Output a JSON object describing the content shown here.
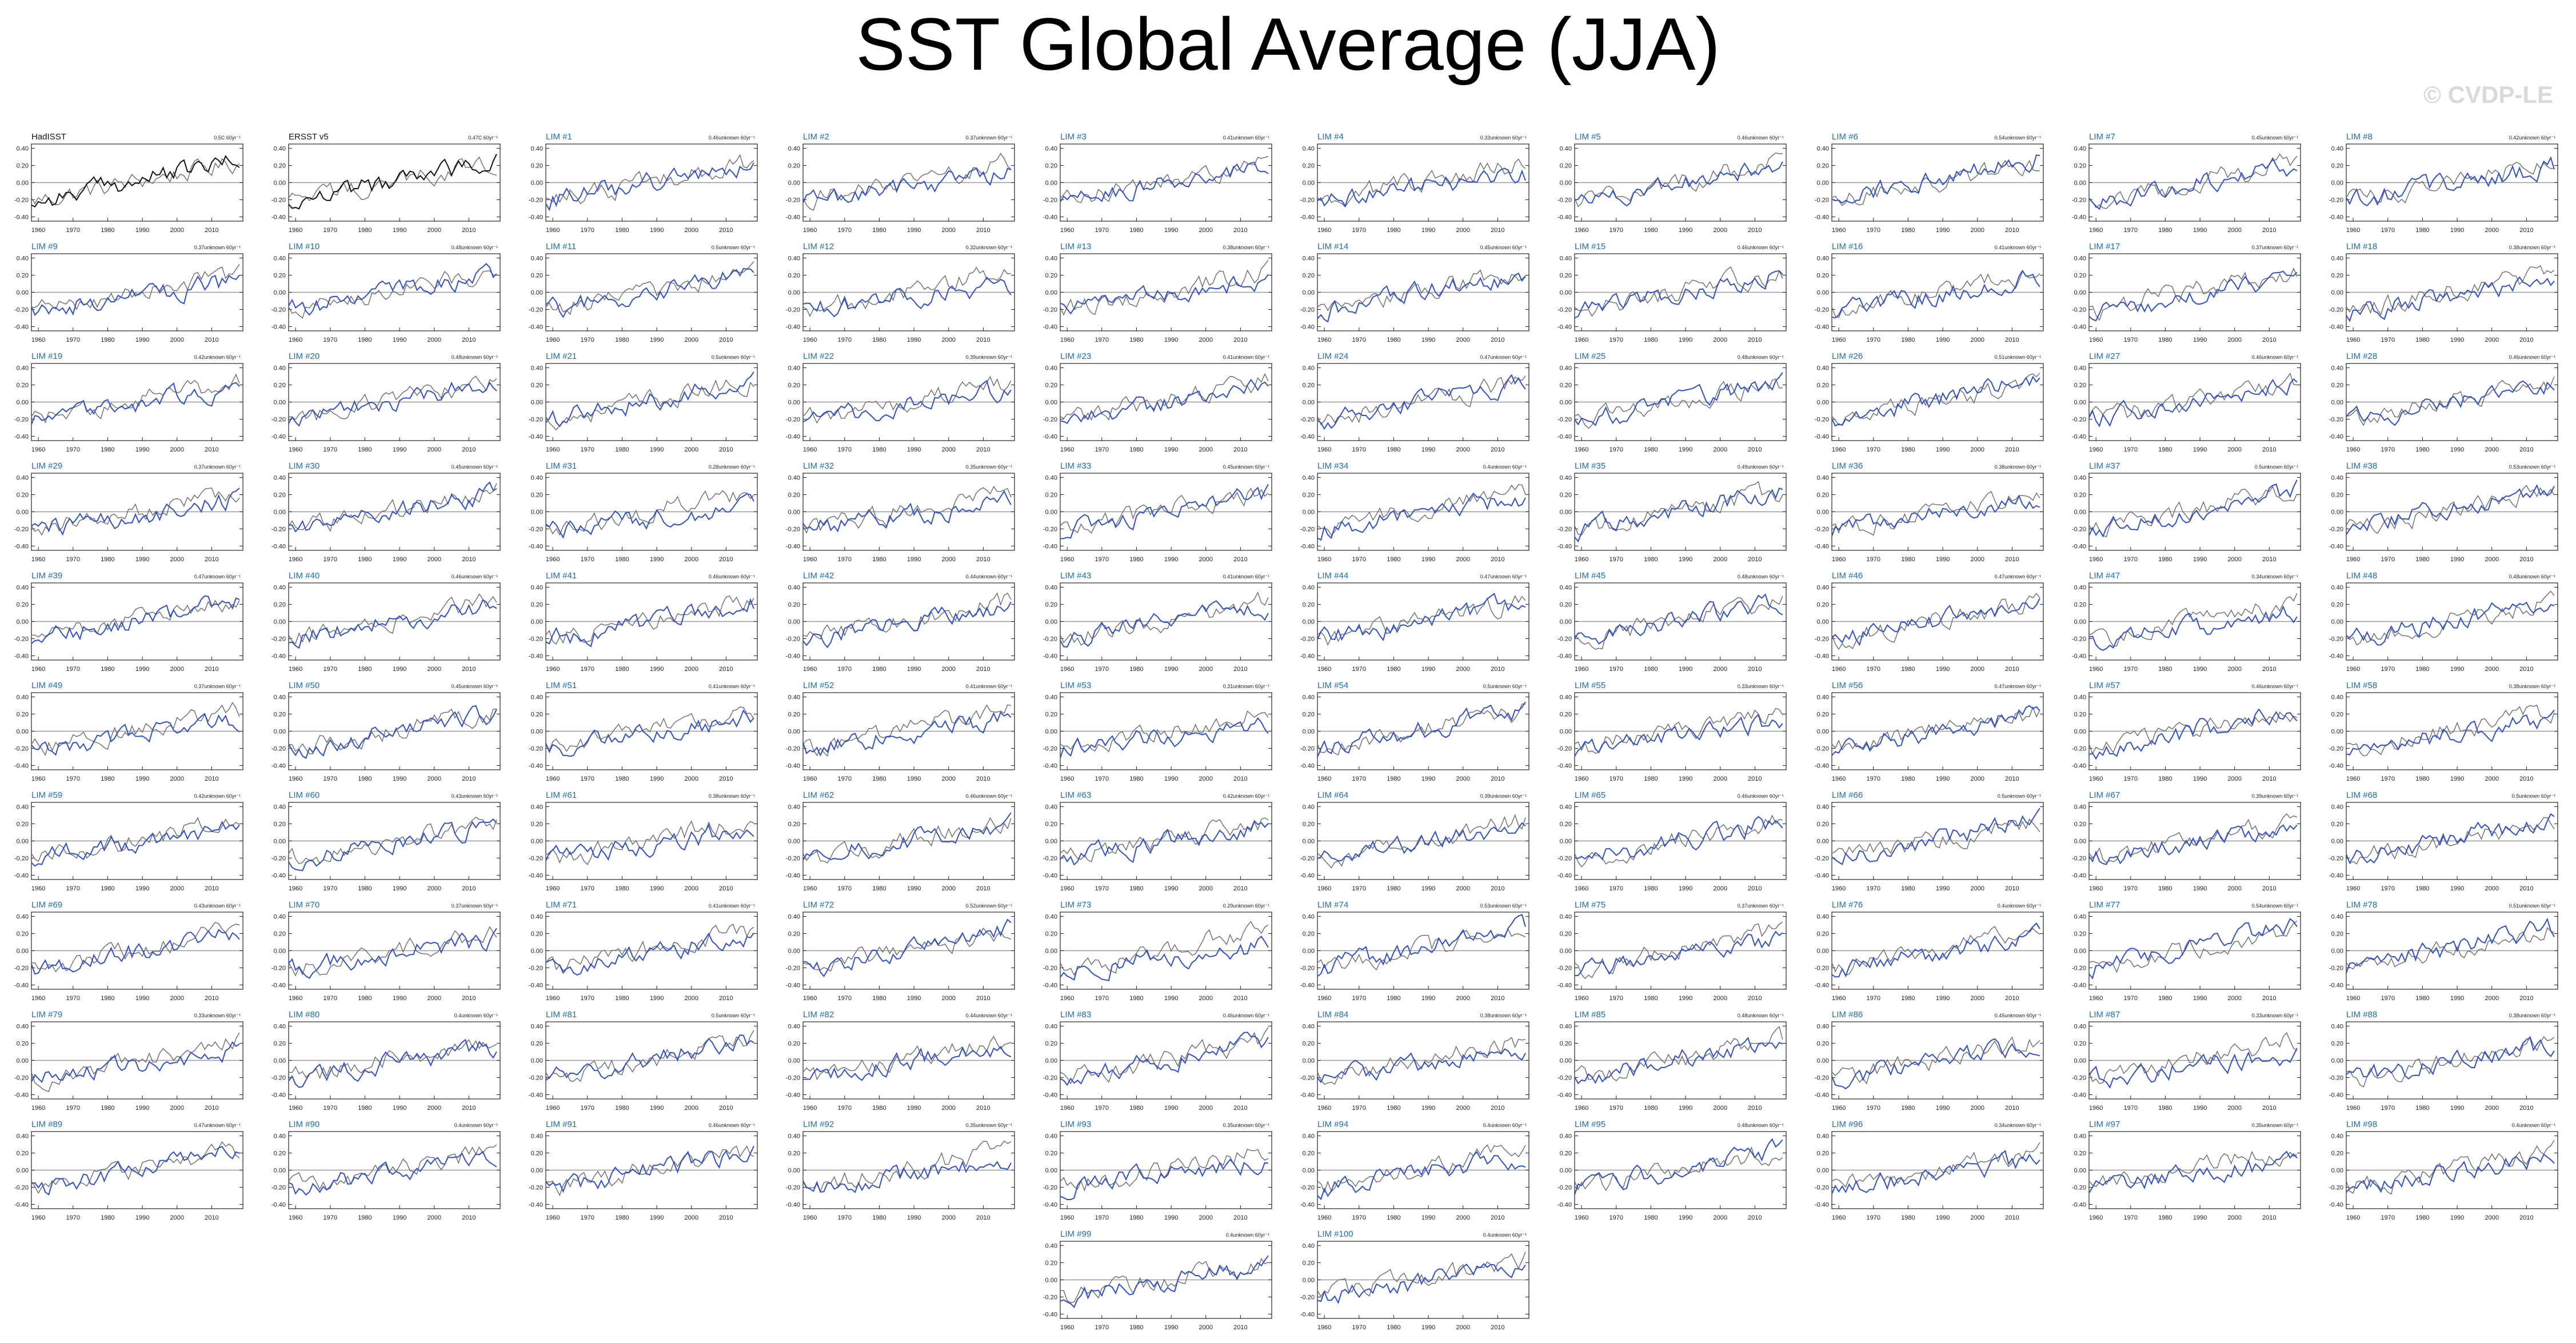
{
  "title": "SST Global Average (JJA)",
  "watermark": "© CVDP-LE",
  "colors": {
    "obs_line": "#111111",
    "obs_title": "#111111",
    "member_line": "#2f4fd0",
    "member_title": "#1c6fb0",
    "zero_line": "#9a9a9a",
    "axis": "#222222"
  },
  "chart_data": {
    "type": "line",
    "xlim": [
      1958,
      2019
    ],
    "ylim": [
      -0.45,
      0.45
    ],
    "x_ticks": [
      1960,
      1970,
      1980,
      1990,
      2000,
      2010
    ],
    "y_ticks": [
      "0.40",
      "0.20",
      "0.00",
      "-0.20",
      "-0.40"
    ],
    "panels": [
      {
        "label": "HadISST",
        "trend": "0.5C 60yr⁻¹",
        "kind": "obs",
        "mean_trend": 0.5
      },
      {
        "label": "ERSST v5",
        "trend": "0.47C 60yr⁻¹",
        "kind": "obs",
        "mean_trend": 0.47
      },
      {
        "label": "LIM #1",
        "trend": "0.46unknown 60yr⁻¹",
        "kind": "member",
        "mean_trend": 0.46
      },
      {
        "label": "LIM #2",
        "trend": "0.37unknown 60yr⁻¹",
        "kind": "member",
        "mean_trend": 0.37
      },
      {
        "label": "LIM #3",
        "trend": "0.41unknown 60yr⁻¹",
        "kind": "member",
        "mean_trend": 0.41
      },
      {
        "label": "LIM #4",
        "trend": "0.33unknown 60yr⁻¹",
        "kind": "member",
        "mean_trend": 0.33
      },
      {
        "label": "LIM #5",
        "trend": "0.46unknown 60yr⁻¹",
        "kind": "member",
        "mean_trend": 0.46
      },
      {
        "label": "LIM #6",
        "trend": "0.54unknown 60yr⁻¹",
        "kind": "member",
        "mean_trend": 0.54
      },
      {
        "label": "LIM #7",
        "trend": "0.45unknown 60yr⁻¹",
        "kind": "member",
        "mean_trend": 0.45
      },
      {
        "label": "LIM #8",
        "trend": "0.42unknown 60yr⁻¹",
        "kind": "member",
        "mean_trend": 0.42
      },
      {
        "label": "LIM #9",
        "trend": "0.37unknown 60yr⁻¹",
        "kind": "member",
        "mean_trend": 0.37
      },
      {
        "label": "LIM #10",
        "trend": "0.48unknown 60yr⁻¹",
        "kind": "member",
        "mean_trend": 0.48
      },
      {
        "label": "LIM #11",
        "trend": "0.5unknown 60yr⁻¹",
        "kind": "member",
        "mean_trend": 0.5
      },
      {
        "label": "LIM #12",
        "trend": "0.32unknown 60yr⁻¹",
        "kind": "member",
        "mean_trend": 0.32
      },
      {
        "label": "LIM #13",
        "trend": "0.38unknown 60yr⁻¹",
        "kind": "member",
        "mean_trend": 0.38
      },
      {
        "label": "LIM #14",
        "trend": "0.45unknown 60yr⁻¹",
        "kind": "member",
        "mean_trend": 0.45
      },
      {
        "label": "LIM #15",
        "trend": "0.46unknown 60yr⁻¹",
        "kind": "member",
        "mean_trend": 0.46
      },
      {
        "label": "LIM #16",
        "trend": "0.41unknown 60yr⁻¹",
        "kind": "member",
        "mean_trend": 0.41
      },
      {
        "label": "LIM #17",
        "trend": "0.37unknown 60yr⁻¹",
        "kind": "member",
        "mean_trend": 0.37
      },
      {
        "label": "LIM #18",
        "trend": "0.38unknown 60yr⁻¹",
        "kind": "member",
        "mean_trend": 0.38
      },
      {
        "label": "LIM #19",
        "trend": "0.42unknown 60yr⁻¹",
        "kind": "member",
        "mean_trend": 0.42
      },
      {
        "label": "LIM #20",
        "trend": "0.48unknown 60yr⁻¹",
        "kind": "member",
        "mean_trend": 0.48
      },
      {
        "label": "LIM #21",
        "trend": "0.5unknown 60yr⁻¹",
        "kind": "member",
        "mean_trend": 0.5
      },
      {
        "label": "LIM #22",
        "trend": "0.39unknown 60yr⁻¹",
        "kind": "member",
        "mean_trend": 0.39
      },
      {
        "label": "LIM #23",
        "trend": "0.41unknown 60yr⁻¹",
        "kind": "member",
        "mean_trend": 0.41
      },
      {
        "label": "LIM #24",
        "trend": "0.47unknown 60yr⁻¹",
        "kind": "member",
        "mean_trend": 0.47
      },
      {
        "label": "LIM #25",
        "trend": "0.48unknown 60yr⁻¹",
        "kind": "member",
        "mean_trend": 0.48
      },
      {
        "label": "LIM #26",
        "trend": "0.51unknown 60yr⁻¹",
        "kind": "member",
        "mean_trend": 0.51
      },
      {
        "label": "LIM #27",
        "trend": "0.46unknown 60yr⁻¹",
        "kind": "member",
        "mean_trend": 0.46
      },
      {
        "label": "LIM #28",
        "trend": "0.46unknown 60yr⁻¹",
        "kind": "member",
        "mean_trend": 0.46
      },
      {
        "label": "LIM #29",
        "trend": "0.37unknown 60yr⁻¹",
        "kind": "member",
        "mean_trend": 0.37
      },
      {
        "label": "LIM #30",
        "trend": "0.45unknown 60yr⁻¹",
        "kind": "member",
        "mean_trend": 0.45
      },
      {
        "label": "LIM #31",
        "trend": "0.28unknown 60yr⁻¹",
        "kind": "member",
        "mean_trend": 0.28
      },
      {
        "label": "LIM #32",
        "trend": "0.35unknown 60yr⁻¹",
        "kind": "member",
        "mean_trend": 0.35
      },
      {
        "label": "LIM #33",
        "trend": "0.45unknown 60yr⁻¹",
        "kind": "member",
        "mean_trend": 0.45
      },
      {
        "label": "LIM #34",
        "trend": "0.4unknown 60yr⁻¹",
        "kind": "member",
        "mean_trend": 0.4
      },
      {
        "label": "LIM #35",
        "trend": "0.49unknown 60yr⁻¹",
        "kind": "member",
        "mean_trend": 0.49
      },
      {
        "label": "LIM #36",
        "trend": "0.38unknown 60yr⁻¹",
        "kind": "member",
        "mean_trend": 0.38
      },
      {
        "label": "LIM #37",
        "trend": "0.5unknown 60yr⁻¹",
        "kind": "member",
        "mean_trend": 0.5
      },
      {
        "label": "LIM #38",
        "trend": "0.53unknown 60yr⁻¹",
        "kind": "member",
        "mean_trend": 0.53
      },
      {
        "label": "LIM #39",
        "trend": "0.47unknown 60yr⁻¹",
        "kind": "member",
        "mean_trend": 0.47
      },
      {
        "label": "LIM #40",
        "trend": "0.46unknown 60yr⁻¹",
        "kind": "member",
        "mean_trend": 0.46
      },
      {
        "label": "LIM #41",
        "trend": "0.46unknown 60yr⁻¹",
        "kind": "member",
        "mean_trend": 0.46
      },
      {
        "label": "LIM #42",
        "trend": "0.44unknown 60yr⁻¹",
        "kind": "member",
        "mean_trend": 0.44
      },
      {
        "label": "LIM #43",
        "trend": "0.41unknown 60yr⁻¹",
        "kind": "member",
        "mean_trend": 0.41
      },
      {
        "label": "LIM #44",
        "trend": "0.47unknown 60yr⁻¹",
        "kind": "member",
        "mean_trend": 0.47
      },
      {
        "label": "LIM #45",
        "trend": "0.48unknown 60yr⁻¹",
        "kind": "member",
        "mean_trend": 0.48
      },
      {
        "label": "LIM #46",
        "trend": "0.47unknown 60yr⁻¹",
        "kind": "member",
        "mean_trend": 0.47
      },
      {
        "label": "LIM #47",
        "trend": "0.34unknown 60yr⁻¹",
        "kind": "member",
        "mean_trend": 0.34
      },
      {
        "label": "LIM #48",
        "trend": "0.48unknown 60yr⁻¹",
        "kind": "member",
        "mean_trend": 0.48
      },
      {
        "label": "LIM #49",
        "trend": "0.37unknown 60yr⁻¹",
        "kind": "member",
        "mean_trend": 0.37
      },
      {
        "label": "LIM #50",
        "trend": "0.45unknown 60yr⁻¹",
        "kind": "member",
        "mean_trend": 0.45
      },
      {
        "label": "LIM #51",
        "trend": "0.41unknown 60yr⁻¹",
        "kind": "member",
        "mean_trend": 0.41
      },
      {
        "label": "LIM #52",
        "trend": "0.41unknown 60yr⁻¹",
        "kind": "member",
        "mean_trend": 0.41
      },
      {
        "label": "LIM #53",
        "trend": "0.31unknown 60yr⁻¹",
        "kind": "member",
        "mean_trend": 0.31
      },
      {
        "label": "LIM #54",
        "trend": "0.5unknown 60yr⁻¹",
        "kind": "member",
        "mean_trend": 0.5
      },
      {
        "label": "LIM #55",
        "trend": "0.33unknown 60yr⁻¹",
        "kind": "member",
        "mean_trend": 0.33
      },
      {
        "label": "LIM #56",
        "trend": "0.47unknown 60yr⁻¹",
        "kind": "member",
        "mean_trend": 0.47
      },
      {
        "label": "LIM #57",
        "trend": "0.46unknown 60yr⁻¹",
        "kind": "member",
        "mean_trend": 0.46
      },
      {
        "label": "LIM #58",
        "trend": "0.38unknown 60yr⁻¹",
        "kind": "member",
        "mean_trend": 0.38
      },
      {
        "label": "LIM #59",
        "trend": "0.42unknown 60yr⁻¹",
        "kind": "member",
        "mean_trend": 0.42
      },
      {
        "label": "LIM #60",
        "trend": "0.43unknown 60yr⁻¹",
        "kind": "member",
        "mean_trend": 0.43
      },
      {
        "label": "LIM #61",
        "trend": "0.38unknown 60yr⁻¹",
        "kind": "member",
        "mean_trend": 0.38
      },
      {
        "label": "LIM #62",
        "trend": "0.46unknown 60yr⁻¹",
        "kind": "member",
        "mean_trend": 0.46
      },
      {
        "label": "LIM #63",
        "trend": "0.42unknown 60yr⁻¹",
        "kind": "member",
        "mean_trend": 0.42
      },
      {
        "label": "LIM #64",
        "trend": "0.39unknown 60yr⁻¹",
        "kind": "member",
        "mean_trend": 0.39
      },
      {
        "label": "LIM #65",
        "trend": "0.46unknown 60yr⁻¹",
        "kind": "member",
        "mean_trend": 0.46
      },
      {
        "label": "LIM #66",
        "trend": "0.5unknown 60yr⁻¹",
        "kind": "member",
        "mean_trend": 0.5
      },
      {
        "label": "LIM #67",
        "trend": "0.39unknown 60yr⁻¹",
        "kind": "member",
        "mean_trend": 0.39
      },
      {
        "label": "LIM #68",
        "trend": "0.5unknown 60yr⁻¹",
        "kind": "member",
        "mean_trend": 0.5
      },
      {
        "label": "LIM #69",
        "trend": "0.43unknown 60yr⁻¹",
        "kind": "member",
        "mean_trend": 0.43
      },
      {
        "label": "LIM #70",
        "trend": "0.37unknown 60yr⁻¹",
        "kind": "member",
        "mean_trend": 0.37
      },
      {
        "label": "LIM #71",
        "trend": "0.41unknown 60yr⁻¹",
        "kind": "member",
        "mean_trend": 0.41
      },
      {
        "label": "LIM #72",
        "trend": "0.52unknown 60yr⁻¹",
        "kind": "member",
        "mean_trend": 0.52
      },
      {
        "label": "LIM #73",
        "trend": "0.29unknown 60yr⁻¹",
        "kind": "member",
        "mean_trend": 0.29
      },
      {
        "label": "LIM #74",
        "trend": "0.53unknown 60yr⁻¹",
        "kind": "member",
        "mean_trend": 0.53
      },
      {
        "label": "LIM #75",
        "trend": "0.37unknown 60yr⁻¹",
        "kind": "member",
        "mean_trend": 0.37
      },
      {
        "label": "LIM #76",
        "trend": "0.4unknown 60yr⁻¹",
        "kind": "member",
        "mean_trend": 0.4
      },
      {
        "label": "LIM #77",
        "trend": "0.54unknown 60yr⁻¹",
        "kind": "member",
        "mean_trend": 0.54
      },
      {
        "label": "LIM #78",
        "trend": "0.51unknown 60yr⁻¹",
        "kind": "member",
        "mean_trend": 0.51
      },
      {
        "label": "LIM #79",
        "trend": "0.33unknown 60yr⁻¹",
        "kind": "member",
        "mean_trend": 0.33
      },
      {
        "label": "LIM #80",
        "trend": "0.4unknown 60yr⁻¹",
        "kind": "member",
        "mean_trend": 0.4
      },
      {
        "label": "LIM #81",
        "trend": "0.5unknown 60yr⁻¹",
        "kind": "member",
        "mean_trend": 0.5
      },
      {
        "label": "LIM #82",
        "trend": "0.44unknown 60yr⁻¹",
        "kind": "member",
        "mean_trend": 0.44
      },
      {
        "label": "LIM #83",
        "trend": "0.46unknown 60yr⁻¹",
        "kind": "member",
        "mean_trend": 0.46
      },
      {
        "label": "LIM #84",
        "trend": "0.38unknown 60yr⁻¹",
        "kind": "member",
        "mean_trend": 0.38
      },
      {
        "label": "LIM #85",
        "trend": "0.48unknown 60yr⁻¹",
        "kind": "member",
        "mean_trend": 0.48
      },
      {
        "label": "LIM #86",
        "trend": "0.45unknown 60yr⁻¹",
        "kind": "member",
        "mean_trend": 0.45
      },
      {
        "label": "LIM #87",
        "trend": "0.33unknown 60yr⁻¹",
        "kind": "member",
        "mean_trend": 0.33
      },
      {
        "label": "LIM #88",
        "trend": "0.38unknown 60yr⁻¹",
        "kind": "member",
        "mean_trend": 0.38
      },
      {
        "label": "LIM #89",
        "trend": "0.47unknown 60yr⁻¹",
        "kind": "member",
        "mean_trend": 0.47
      },
      {
        "label": "LIM #90",
        "trend": "0.4unknown 60yr⁻¹",
        "kind": "member",
        "mean_trend": 0.4
      },
      {
        "label": "LIM #91",
        "trend": "0.46unknown 60yr⁻¹",
        "kind": "member",
        "mean_trend": 0.46
      },
      {
        "label": "LIM #92",
        "trend": "0.35unknown 60yr⁻¹",
        "kind": "member",
        "mean_trend": 0.35
      },
      {
        "label": "LIM #93",
        "trend": "0.35unknown 60yr⁻¹",
        "kind": "member",
        "mean_trend": 0.35
      },
      {
        "label": "LIM #94",
        "trend": "0.4unknown 60yr⁻¹",
        "kind": "member",
        "mean_trend": 0.4
      },
      {
        "label": "LIM #95",
        "trend": "0.48unknown 60yr⁻¹",
        "kind": "member",
        "mean_trend": 0.48
      },
      {
        "label": "LIM #96",
        "trend": "0.34unknown 60yr⁻¹",
        "kind": "member",
        "mean_trend": 0.34
      },
      {
        "label": "LIM #97",
        "trend": "0.35unknown 60yr⁻¹",
        "kind": "member",
        "mean_trend": 0.35
      },
      {
        "label": "LIM #98",
        "trend": "0.4unknown 60yr⁻¹",
        "kind": "member",
        "mean_trend": 0.4
      },
      {
        "label": "LIM #99",
        "trend": "0.4unknown 60yr⁻¹",
        "kind": "member",
        "mean_trend": 0.4
      },
      {
        "label": "LIM #100",
        "trend": "0.4unknown 60yr⁻¹",
        "kind": "member",
        "mean_trend": 0.4
      }
    ]
  }
}
